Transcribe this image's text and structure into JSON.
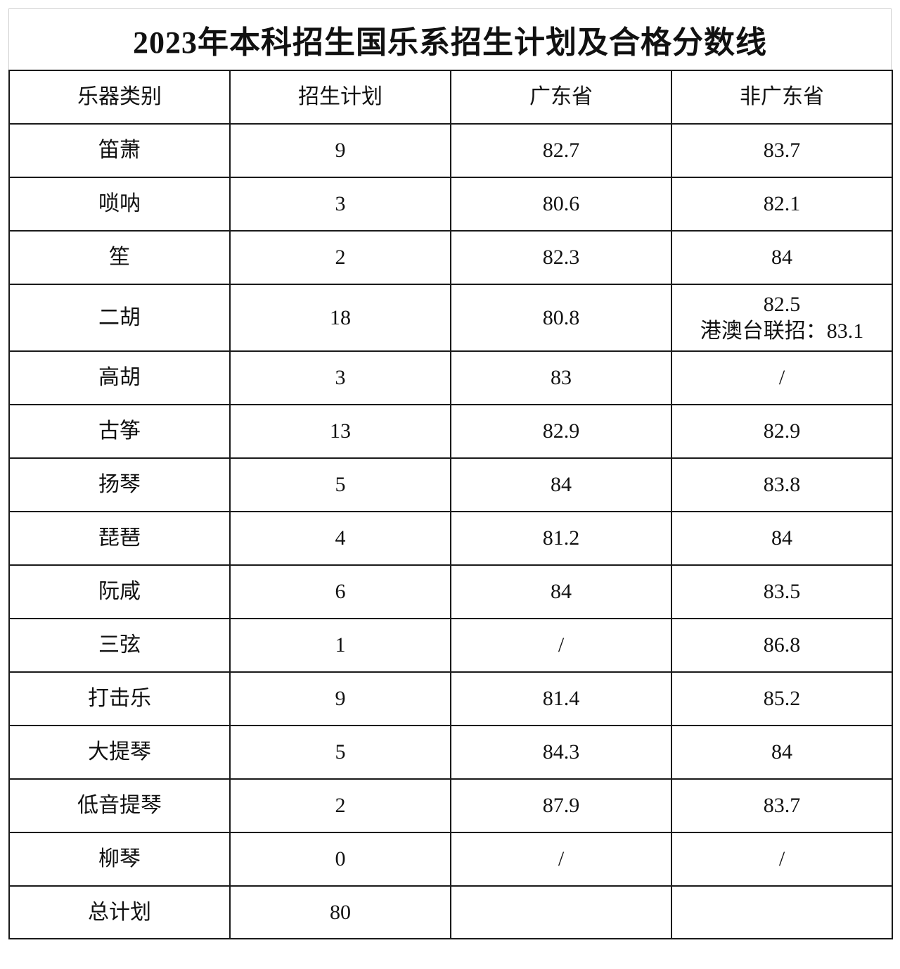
{
  "title": "2023年本科招生国乐系招生计划及合格分数线",
  "table": {
    "headers": [
      "乐器类别",
      "招生计划",
      "广东省",
      "非广东省"
    ],
    "rows": [
      {
        "instrument": "笛萧",
        "plan": "9",
        "guangdong": "82.7",
        "non_guangdong": "83.7"
      },
      {
        "instrument": "唢呐",
        "plan": "3",
        "guangdong": "80.6",
        "non_guangdong": "82.1"
      },
      {
        "instrument": "笙",
        "plan": "2",
        "guangdong": "82.3",
        "non_guangdong": "84"
      },
      {
        "instrument": "二胡",
        "plan": "18",
        "guangdong": "80.8",
        "non_guangdong": "82.5",
        "non_guangdong_note": "港澳台联招：83.1"
      },
      {
        "instrument": "高胡",
        "plan": "3",
        "guangdong": "83",
        "non_guangdong": "/"
      },
      {
        "instrument": "古筝",
        "plan": "13",
        "guangdong": "82.9",
        "non_guangdong": "82.9"
      },
      {
        "instrument": "扬琴",
        "plan": "5",
        "guangdong": "84",
        "non_guangdong": "83.8"
      },
      {
        "instrument": "琵琶",
        "plan": "4",
        "guangdong": "81.2",
        "non_guangdong": "84"
      },
      {
        "instrument": "阮咸",
        "plan": "6",
        "guangdong": "84",
        "non_guangdong": "83.5"
      },
      {
        "instrument": "三弦",
        "plan": "1",
        "guangdong": "/",
        "non_guangdong": "86.8"
      },
      {
        "instrument": "打击乐",
        "plan": "9",
        "guangdong": "81.4",
        "non_guangdong": "85.2"
      },
      {
        "instrument": "大提琴",
        "plan": "5",
        "guangdong": "84.3",
        "non_guangdong": "84"
      },
      {
        "instrument": "低音提琴",
        "plan": "2",
        "guangdong": "87.9",
        "non_guangdong": "83.7"
      },
      {
        "instrument": "柳琴",
        "plan": "0",
        "guangdong": "/",
        "non_guangdong": "/"
      }
    ],
    "total": {
      "label": "总计划",
      "plan": "80",
      "guangdong": "",
      "non_guangdong": ""
    }
  }
}
